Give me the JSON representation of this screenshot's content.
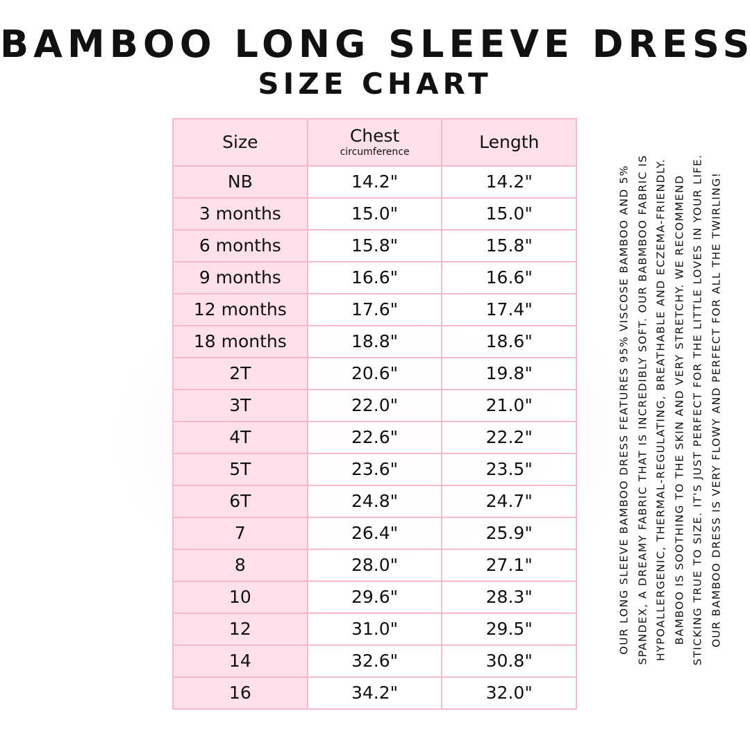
{
  "title": "BAMBOO LONG SLEEVE DRESS",
  "subtitle": "SIZE CHART",
  "table": {
    "headers": {
      "size": "Size",
      "chest": "Chest",
      "chest_sub": "circumference",
      "length": "Length"
    },
    "rows": [
      {
        "size": "NB",
        "chest": "14.2\"",
        "length": "14.2\""
      },
      {
        "size": "3 months",
        "chest": "15.0\"",
        "length": "15.0\""
      },
      {
        "size": "6 months",
        "chest": "15.8\"",
        "length": "15.8\""
      },
      {
        "size": "9 months",
        "chest": "16.6\"",
        "length": "16.6\""
      },
      {
        "size": "12 months",
        "chest": "17.6\"",
        "length": "17.4\""
      },
      {
        "size": "18 months",
        "chest": "18.8\"",
        "length": "18.6\""
      },
      {
        "size": "2T",
        "chest": "20.6\"",
        "length": "19.8\""
      },
      {
        "size": "3T",
        "chest": "22.0\"",
        "length": "21.0\""
      },
      {
        "size": "4T",
        "chest": "22.6\"",
        "length": "22.2\""
      },
      {
        "size": "5T",
        "chest": "23.6\"",
        "length": "23.5\""
      },
      {
        "size": "6T",
        "chest": "24.8\"",
        "length": "24.7\""
      },
      {
        "size": "7",
        "chest": "26.4\"",
        "length": "25.9\""
      },
      {
        "size": "8",
        "chest": "28.0\"",
        "length": "27.1\""
      },
      {
        "size": "10",
        "chest": "29.6\"",
        "length": "28.3\""
      },
      {
        "size": "12",
        "chest": "31.0\"",
        "length": "29.5\""
      },
      {
        "size": "14",
        "chest": "32.6\"",
        "length": "30.8\""
      },
      {
        "size": "16",
        "chest": "34.2\"",
        "length": "32.0\""
      }
    ]
  },
  "description": [
    "OUR LONG SLEEVE BAMBOO DRESS FEATURES 95% VISCOSE BAMBOO AND 5%",
    "SPANDEX, A DREAMY FABRIC THAT IS INCREDIBLY SOFT. OUR BABMBOO FABRIC IS",
    "HYPOALLERGENIC, THERMAL-REGULATING,  BREATHABLE AND ECZEMA-FRIENDLY.",
    "BAMBOO IS SOOTHING TO THE SKIN AND VERY STRETCHY. WE RECOMMEND",
    "STICKING TRUE TO SIZE. IT'S JUST PERFECT FOR THE LITTLE LOVES IN YOUR LIFE.",
    "OUR BAMBOO DRESS IS VERY FLOWY AND PERFECT FOR ALL THE TWIRLING!"
  ],
  "colors": {
    "pink_fill": "#fde0ea",
    "pink_border": "#f7b9cc"
  }
}
